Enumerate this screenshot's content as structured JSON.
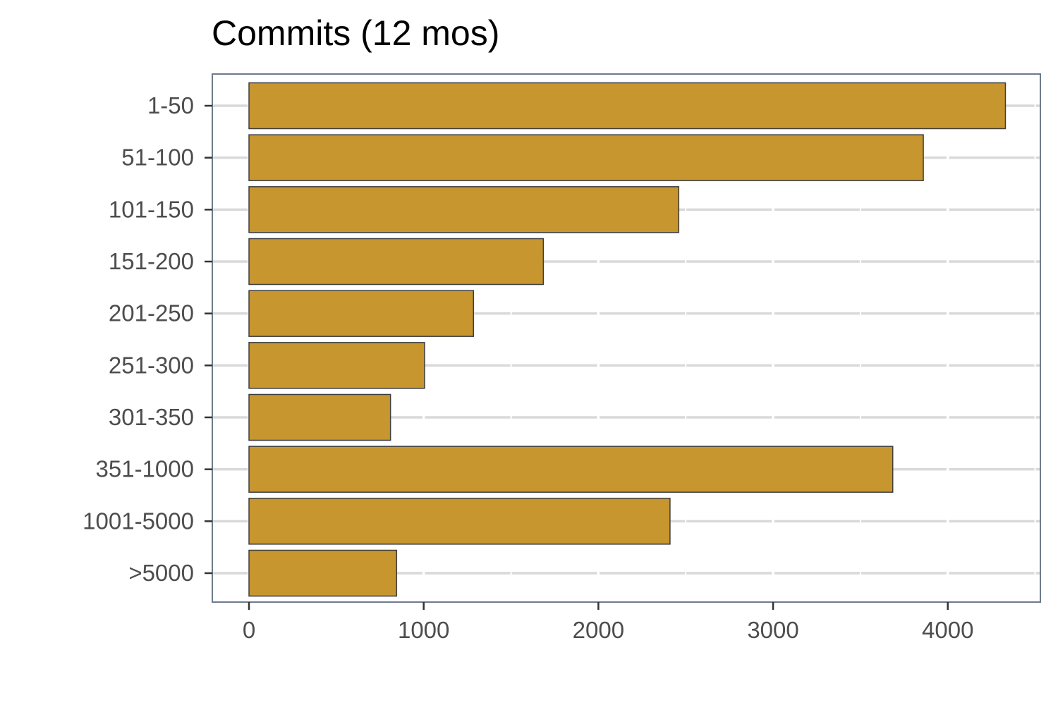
{
  "chart_data": {
    "type": "bar",
    "orientation": "horizontal",
    "title": "Commits (12 mos)",
    "xlabel": "",
    "ylabel": "",
    "categories": [
      "1-50",
      "51-100",
      "101-150",
      "151-200",
      "201-250",
      "251-300",
      "301-350",
      "351-1000",
      "1001-5000",
      ">5000"
    ],
    "values": [
      4330,
      3860,
      2460,
      1685,
      1285,
      1005,
      810,
      3685,
      2410,
      845
    ],
    "xlim": [
      -210,
      4530
    ],
    "xticks": [
      "0",
      "1000",
      "2000",
      "3000",
      "4000"
    ],
    "xtick_values": [
      0,
      1000,
      2000,
      3000,
      4000
    ],
    "grid": true,
    "legend": "none",
    "colors": {
      "bar_fill": "#c7962f",
      "bar_stroke": "#3d3d3d",
      "grid": "#d9d9d9",
      "panel_border": "#6e7b8b",
      "tick_text": "#4d4d4d"
    }
  }
}
